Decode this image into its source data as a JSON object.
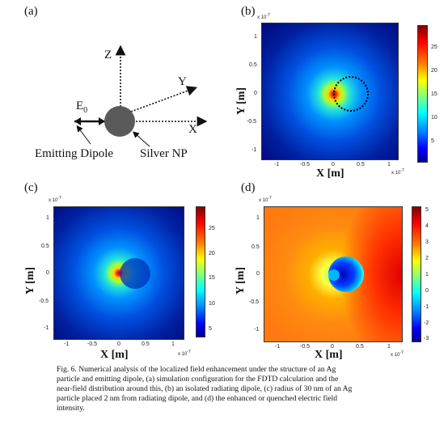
{
  "panel_a": {
    "label": "(a)",
    "z_label": "Z",
    "y_label": "Y",
    "x_label": "X",
    "e_label": "E",
    "e_sub": "0",
    "dipole_label": "Emitting Dipole",
    "np_label": "Silver NP"
  },
  "plots": {
    "b": {
      "label": "(b)",
      "xlabel": "X [m]",
      "ylabel": "Y [m]",
      "x_exp": "x 10",
      "y_exp": "x 10",
      "exp_power": "-7",
      "x_ticks": [
        "-1",
        "-0.5",
        "0",
        "0.5",
        "1"
      ],
      "y_ticks": [
        "1",
        "0.5",
        "0",
        "-0.5",
        "-1"
      ],
      "cbar_ticks": [
        "25",
        "20",
        "15",
        "10",
        "5"
      ]
    },
    "c": {
      "label": "(c)",
      "xlabel": "X [m]",
      "ylabel": "Y [m]",
      "x_exp": "x 10",
      "y_exp": "x 10",
      "exp_power": "-7",
      "x_ticks": [
        "-1",
        "-0.5",
        "0",
        "0.5",
        "1"
      ],
      "y_ticks": [
        "1",
        "0.5",
        "0",
        "-0.5",
        "-1"
      ],
      "cbar_ticks": [
        "25",
        "20",
        "15",
        "10",
        "5"
      ]
    },
    "d": {
      "label": "(d)",
      "xlabel": "X [m]",
      "ylabel": "Y [m]",
      "x_exp": "x 10",
      "y_exp": "x 10",
      "exp_power": "-7",
      "x_ticks": [
        "-1",
        "-0.5",
        "0",
        "0.5",
        "1"
      ],
      "y_ticks": [
        "1",
        "0.5",
        "0",
        "-0.5",
        "-1"
      ],
      "cbar_ticks": [
        "5",
        "4",
        "3",
        "2",
        "1",
        "0",
        "-1",
        "-2",
        "-3"
      ]
    }
  },
  "caption": {
    "line1": "Fig. 6. Numerical analysis of the localized field enhancement under the structure of an Ag",
    "line2": "particle and emitting dipole, (a) simulation configuration for the FDTD calculation and the",
    "line3": "near-field distribution around this, (b) an isolated radiating dipole, (c) radius of 30 nm of an Ag",
    "line4": "particle placed 2 nm from radiating dipole, and (d) the enhanced or quenched electric field",
    "line5": "intensity."
  }
}
